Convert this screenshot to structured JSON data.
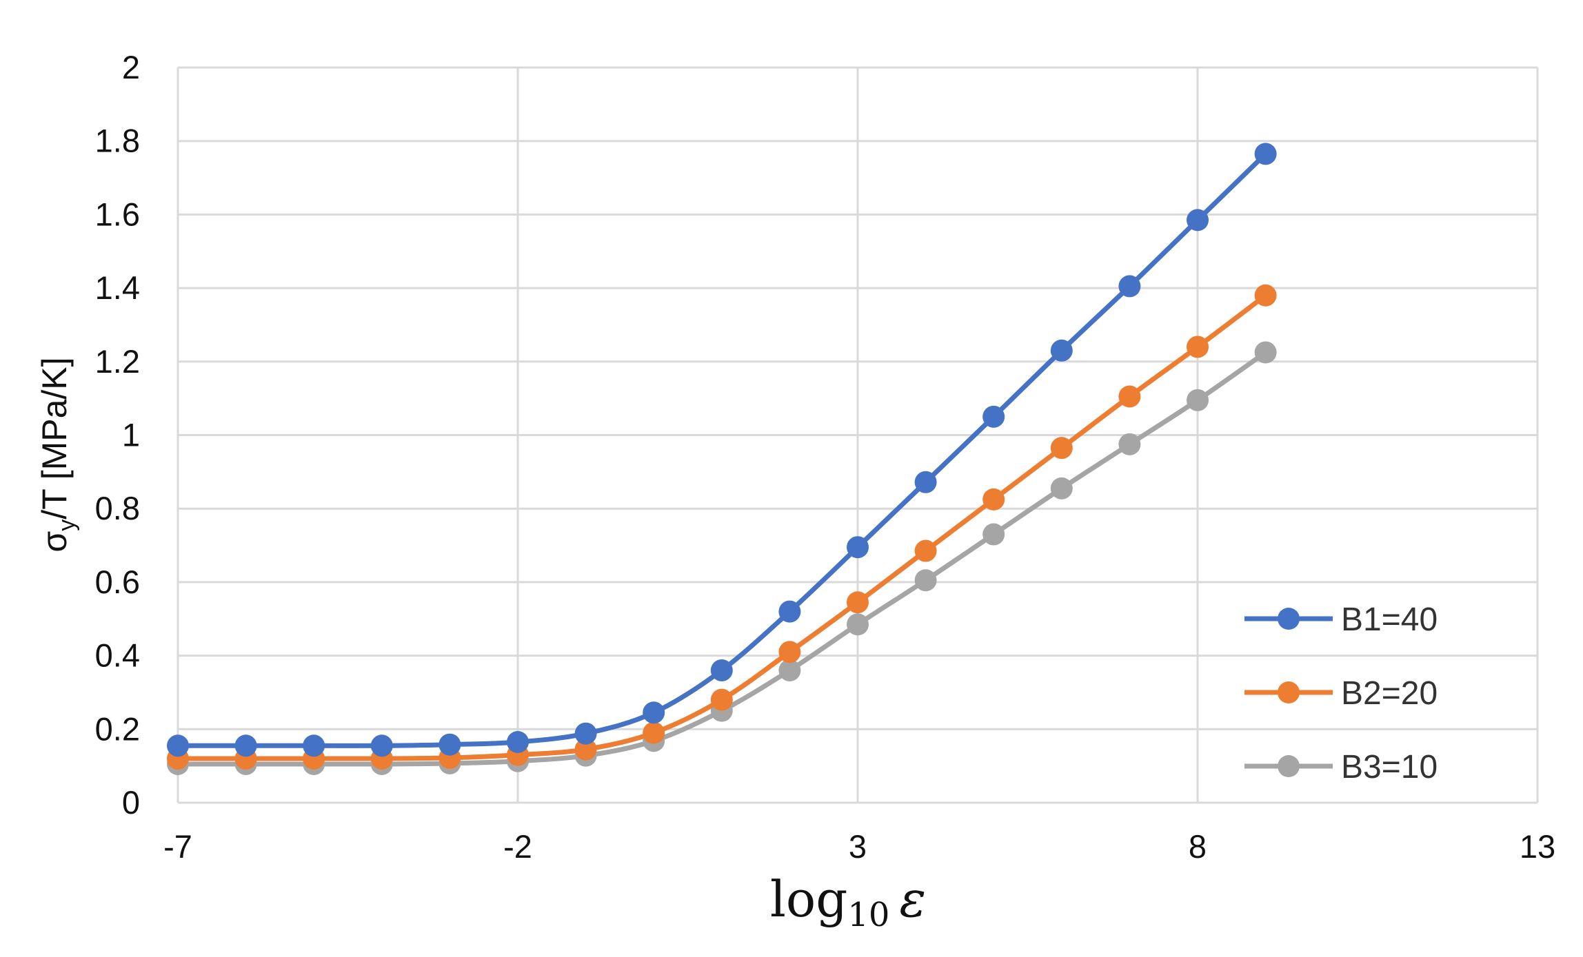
{
  "chart_data": {
    "type": "line",
    "xlabel": {
      "base": "log",
      "sub": "10",
      "var": "ε"
    },
    "ylabel": {
      "a": "σ",
      "sub": "y",
      "b": "/T [MPa/K]"
    },
    "xlim": [
      -7,
      13
    ],
    "ylim": [
      0,
      2
    ],
    "xticks": [
      "-7",
      "-2",
      "3",
      "8",
      "13"
    ],
    "yticks": [
      "0",
      "0.2",
      "0.4",
      "0.6",
      "0.8",
      "1",
      "1.2",
      "1.4",
      "1.6",
      "1.8",
      "2"
    ],
    "grid": true,
    "legend_position": "bottom-right",
    "x": [
      -7,
      -6,
      -5,
      -4,
      -3,
      -2,
      -1,
      0,
      1,
      2,
      3,
      4,
      5,
      6,
      7,
      8,
      9
    ],
    "series": [
      {
        "name": "B1=40",
        "color": "#4472C4",
        "values": [
          0.155,
          0.155,
          0.155,
          0.155,
          0.158,
          0.165,
          0.188,
          0.245,
          0.36,
          0.52,
          0.695,
          0.872,
          1.05,
          1.23,
          1.405,
          1.585,
          1.765
        ]
      },
      {
        "name": "B2=20",
        "color": "#ED7D31",
        "values": [
          0.12,
          0.12,
          0.12,
          0.12,
          0.122,
          0.13,
          0.145,
          0.19,
          0.28,
          0.41,
          0.545,
          0.685,
          0.825,
          0.965,
          1.105,
          1.24,
          1.38
        ]
      },
      {
        "name": "B3=10",
        "color": "#A5A5A5",
        "values": [
          0.105,
          0.105,
          0.105,
          0.105,
          0.107,
          0.113,
          0.128,
          0.168,
          0.25,
          0.36,
          0.485,
          0.605,
          0.73,
          0.855,
          0.975,
          1.095,
          1.225
        ]
      }
    ]
  }
}
